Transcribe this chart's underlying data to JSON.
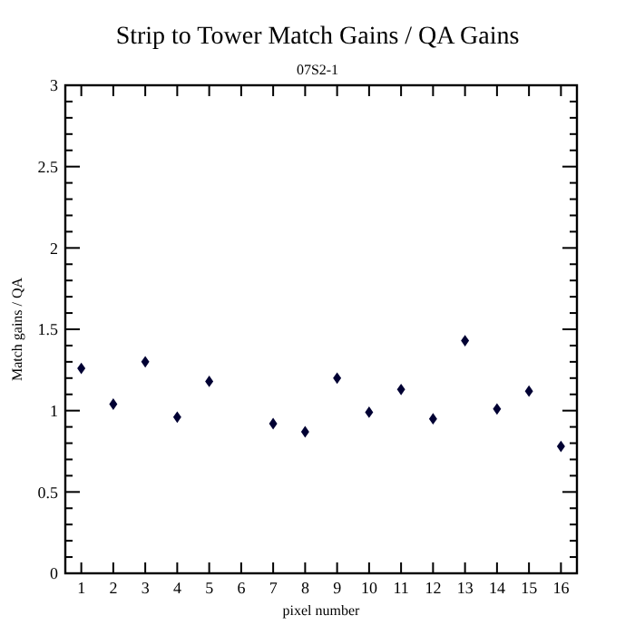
{
  "chart_data": {
    "type": "scatter",
    "title": "Strip to Tower Match Gains / QA Gains",
    "subtitle": "07S2-1",
    "xlabel": "pixel number",
    "ylabel": "Match gains / QA",
    "x": [
      1,
      2,
      3,
      4,
      5,
      6,
      7,
      8,
      9,
      10,
      11,
      12,
      13,
      14,
      15,
      16
    ],
    "series": [
      {
        "color": "#000033",
        "values": [
          1.26,
          1.04,
          1.3,
          0.96,
          1.18,
          null,
          0.92,
          0.87,
          1.2,
          0.99,
          1.13,
          0.95,
          1.43,
          1.01,
          1.12,
          0.78
        ]
      }
    ],
    "xlim": [
      0.5,
      16.5
    ],
    "xticks": [
      1,
      2,
      3,
      4,
      5,
      6,
      7,
      8,
      9,
      10,
      11,
      12,
      13,
      14,
      15,
      16
    ],
    "ylim": [
      0,
      3
    ],
    "yticks": [
      0,
      {
        "value": 0.1,
        "label": null
      },
      {
        "value": 0.2,
        "label": null
      },
      {
        "value": 0.3,
        "label": null
      },
      {
        "value": 0.4,
        "label": null
      },
      0.5,
      {
        "value": 0.6,
        "label": null
      },
      {
        "value": 0.7,
        "label": null
      },
      {
        "value": 0.8,
        "label": null
      },
      {
        "value": 0.9,
        "label": null
      },
      1,
      {
        "value": 1.1,
        "label": null
      },
      {
        "value": 1.2,
        "label": null
      },
      {
        "value": 1.3,
        "label": null
      },
      {
        "value": 1.4,
        "label": null
      },
      1.5,
      {
        "value": 1.6,
        "label": null
      },
      {
        "value": 1.7,
        "label": null
      },
      {
        "value": 1.8,
        "label": null
      },
      {
        "value": 1.9,
        "label": null
      },
      2,
      {
        "value": 2.1,
        "label": null
      },
      {
        "value": 2.2,
        "label": null
      },
      {
        "value": 2.3,
        "label": null
      },
      {
        "value": 2.4,
        "label": null
      },
      2.5,
      {
        "value": 2.6,
        "label": null
      },
      {
        "value": 2.7,
        "label": null
      },
      {
        "value": 2.8,
        "label": null
      },
      {
        "value": 2.9,
        "label": null
      },
      3
    ],
    "marker": "diamond",
    "grid": false
  }
}
